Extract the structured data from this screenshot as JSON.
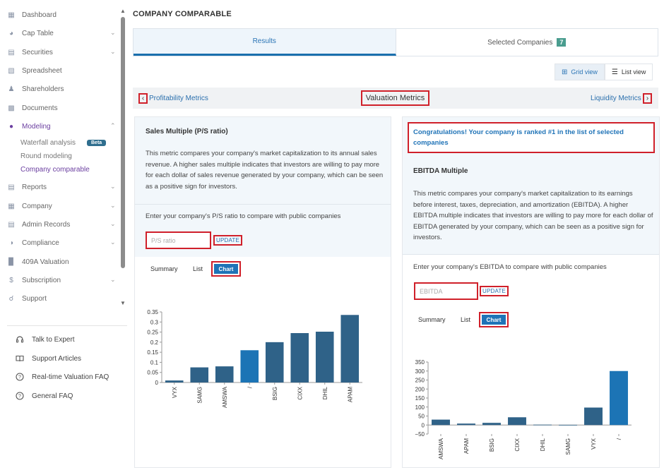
{
  "sidebar": {
    "items": [
      {
        "label": "Dashboard",
        "icon": "dashboard-icon"
      },
      {
        "label": "Cap Table",
        "icon": "pie-chart-icon"
      },
      {
        "label": "Securities",
        "icon": "document-icon"
      },
      {
        "label": "Spreadsheet",
        "icon": "spreadsheet-icon"
      },
      {
        "label": "Shareholders",
        "icon": "person-icon"
      },
      {
        "label": "Documents",
        "icon": "folder-icon"
      },
      {
        "label": "Modeling",
        "icon": "bulb-icon"
      },
      {
        "label": "Reports",
        "icon": "report-icon"
      },
      {
        "label": "Company",
        "icon": "building-icon"
      },
      {
        "label": "Admin Records",
        "icon": "records-icon"
      },
      {
        "label": "Compliance",
        "icon": "shield-icon"
      },
      {
        "label": "409A Valuation",
        "icon": "bar-chart-icon"
      },
      {
        "label": "Subscription",
        "icon": "dollar-icon"
      },
      {
        "label": "Support",
        "icon": "support-icon"
      }
    ],
    "modeling_sub": {
      "waterfall": "Waterfall analysis",
      "beta": "Beta",
      "round": "Round modeling",
      "comparable": "Company comparable"
    },
    "help": [
      {
        "label": "Talk to Expert",
        "icon": "headset-icon"
      },
      {
        "label": "Support Articles",
        "icon": "book-icon"
      },
      {
        "label": "Real-time Valuation FAQ",
        "icon": "question-icon"
      },
      {
        "label": "General FAQ",
        "icon": "question-icon"
      }
    ]
  },
  "header": {
    "title": "COMPANY COMPARABLE"
  },
  "tabs": {
    "results": "Results",
    "selected": "Selected Companies",
    "selected_count": "7"
  },
  "view": {
    "grid": "Grid view",
    "list": "List view"
  },
  "metrics_nav": {
    "prev": "Profitability Metrics",
    "current": "Valuation Metrics",
    "next": "Liquidity Metrics"
  },
  "left_card": {
    "title": "Sales Multiple (P/S ratio)",
    "description": "This metric compares your company's market capitalization to its annual sales revenue. A higher sales multiple indicates that investors are willing to pay more for each dollar of sales revenue generated by your company, which can be seen as a positive sign for investors.",
    "prompt": "Enter your company's P/S ratio to compare with public companies",
    "input_placeholder": "P/S ratio",
    "update": "UPDATE",
    "subtabs": {
      "summary": "Summary",
      "list": "List",
      "chart": "Chart"
    }
  },
  "right_card": {
    "congrats": "Congratulations! Your company is ranked #1 in the list of selected companies",
    "title": "EBITDA Multiple",
    "description": "This metric compares your company's market capitalization to its earnings before interest, taxes, depreciation, and amortization (EBITDA). A higher EBITDA multiple indicates that investors are willing to pay more for each dollar of EBITDA generated by your company, which can be seen as a positive sign for investors.",
    "prompt": "Enter your company's EBITDA to compare with public companies",
    "input_placeholder": "EBITDA",
    "update": "UPDATE",
    "subtabs": {
      "summary": "Summary",
      "list": "List",
      "chart": "Chart"
    }
  },
  "chart_data": [
    {
      "type": "bar",
      "categories": [
        "VYX",
        "SAMG",
        "AMSWA",
        "/",
        "BSIG",
        "CIXX",
        "DHIL",
        "APAM"
      ],
      "values": [
        0.01,
        0.075,
        0.08,
        0.16,
        0.2,
        0.245,
        0.252,
        0.335
      ],
      "highlight_index": 3,
      "ylim": [
        0,
        0.35
      ],
      "yticks": [
        "0",
        "0.05",
        "0.1",
        "0.15",
        "0.2",
        "0.25",
        "0.3",
        "0.35"
      ],
      "colors": {
        "bar": "#2f6288",
        "highlight": "#1c74b5"
      }
    },
    {
      "type": "bar",
      "categories": [
        "AMSWA",
        "APAM",
        "BSIG",
        "CIXX",
        "DHIL",
        "SAMG",
        "VYX",
        "/"
      ],
      "values": [
        30,
        8,
        12,
        43,
        2,
        1,
        97,
        300
      ],
      "highlight_index": 7,
      "ylim": [
        -50,
        350
      ],
      "yticks": [
        "−50",
        "0",
        "50",
        "100",
        "150",
        "200",
        "250",
        "300",
        "350"
      ],
      "colors": {
        "bar": "#2f6288",
        "highlight": "#1c74b5"
      }
    }
  ]
}
